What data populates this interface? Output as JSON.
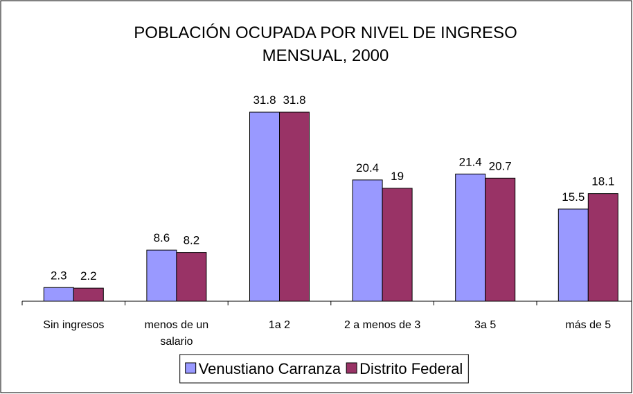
{
  "chart_data": {
    "type": "bar",
    "title": "POBLACIÓN OCUPADA POR NIVEL DE INGRESO MENSUAL, 2000",
    "categories": [
      "Sin ingresos",
      "menos de un salario",
      "1a 2",
      "2 a menos de 3",
      "3a 5",
      "más de 5"
    ],
    "series": [
      {
        "name": "Venustiano Carranza",
        "color": "#9999ff",
        "values": [
          2.3,
          8.6,
          31.8,
          20.4,
          21.4,
          15.5
        ]
      },
      {
        "name": "Distrito Federal",
        "color": "#993366",
        "values": [
          2.2,
          8.2,
          31.8,
          19,
          20.7,
          18.1
        ]
      }
    ],
    "grid": false,
    "legend": "bottom"
  }
}
